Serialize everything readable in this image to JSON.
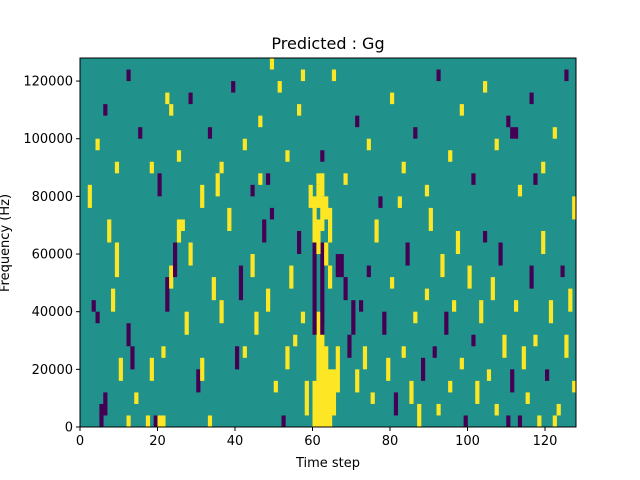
{
  "chart_data": {
    "type": "heatmap",
    "title": "Predicted : Gg",
    "xlabel": "Time step",
    "ylabel": "Frequency (Hz)",
    "xlim": [
      0,
      128
    ],
    "ylim": [
      0,
      128000
    ],
    "x_ticks": [
      0,
      20,
      40,
      60,
      80,
      100,
      120
    ],
    "x_tick_labels": [
      "0",
      "20",
      "40",
      "60",
      "80",
      "100",
      "120"
    ],
    "y_ticks": [
      0,
      20000,
      40000,
      60000,
      80000,
      100000,
      120000
    ],
    "y_tick_labels": [
      "0",
      "20000",
      "40000",
      "60000",
      "80000",
      "100000",
      "120000"
    ],
    "colormap": "viridis",
    "value_levels": [
      -1,
      0,
      1
    ],
    "colors": {
      "-1": "#440154",
      "0": "#21918c",
      "1": "#fde725"
    },
    "background_value": 0,
    "grid": false,
    "columns": 128,
    "rows": 32,
    "row_height_hz": 4000,
    "cells": [
      [
        60,
        0,
        4,
        1
      ],
      [
        61,
        0,
        10,
        1
      ],
      [
        62,
        0,
        9,
        1
      ],
      [
        63,
        0,
        7,
        1
      ],
      [
        64,
        0,
        5,
        1
      ],
      [
        60,
        8,
        10,
        -1
      ],
      [
        62,
        8,
        8,
        -1
      ],
      [
        65,
        1,
        4,
        1
      ],
      [
        58,
        1,
        3,
        1
      ],
      [
        66,
        3,
        4,
        1
      ],
      [
        64,
        12,
        2,
        1
      ],
      [
        63,
        14,
        2,
        1
      ],
      [
        61,
        15,
        3,
        1
      ],
      [
        60,
        16,
        4,
        1
      ],
      [
        62,
        17,
        3,
        1
      ],
      [
        61,
        19,
        2,
        1
      ],
      [
        62,
        20,
        2,
        1
      ],
      [
        61,
        21,
        1,
        1
      ],
      [
        63,
        18,
        2,
        1
      ],
      [
        64,
        16,
        3,
        1
      ],
      [
        66,
        13,
        2,
        -1
      ],
      [
        67,
        13,
        2,
        -1
      ],
      [
        68,
        11,
        2,
        -1
      ],
      [
        69,
        6,
        2,
        -1
      ],
      [
        70,
        8,
        3,
        -1
      ],
      [
        5,
        0,
        2,
        -1
      ],
      [
        6,
        1,
        2,
        -1
      ],
      [
        4,
        9,
        1,
        -1
      ],
      [
        3,
        10,
        1,
        -1
      ],
      [
        7,
        16,
        2,
        1
      ],
      [
        8,
        10,
        2,
        1
      ],
      [
        9,
        13,
        3,
        1
      ],
      [
        10,
        4,
        2,
        1
      ],
      [
        12,
        7,
        2,
        -1
      ],
      [
        12,
        0,
        1,
        1
      ],
      [
        13,
        5,
        2,
        -1
      ],
      [
        14,
        2,
        1,
        1
      ],
      [
        17,
        0,
        1,
        1
      ],
      [
        18,
        4,
        2,
        1
      ],
      [
        19,
        0,
        1,
        -1
      ],
      [
        20,
        0,
        1,
        1
      ],
      [
        21,
        0,
        1,
        1
      ],
      [
        21,
        6,
        1,
        1
      ],
      [
        22,
        10,
        3,
        -1
      ],
      [
        23,
        12,
        2,
        1
      ],
      [
        24,
        13,
        3,
        -1
      ],
      [
        25,
        16,
        2,
        1
      ],
      [
        26,
        17,
        1,
        1
      ],
      [
        27,
        8,
        2,
        1
      ],
      [
        28,
        14,
        2,
        1
      ],
      [
        30,
        3,
        2,
        -1
      ],
      [
        31,
        4,
        2,
        1
      ],
      [
        33,
        0,
        1,
        1
      ],
      [
        34,
        11,
        2,
        1
      ],
      [
        35,
        20,
        2,
        1
      ],
      [
        36,
        9,
        2,
        1
      ],
      [
        38,
        17,
        2,
        1
      ],
      [
        40,
        5,
        2,
        -1
      ],
      [
        41,
        11,
        3,
        -1
      ],
      [
        42,
        6,
        1,
        1
      ],
      [
        44,
        13,
        2,
        1
      ],
      [
        45,
        8,
        2,
        1
      ],
      [
        46,
        21,
        1,
        1
      ],
      [
        47,
        16,
        2,
        -1
      ],
      [
        48,
        10,
        2,
        1
      ],
      [
        49,
        18,
        1,
        -1
      ],
      [
        50,
        3,
        1,
        1
      ],
      [
        52,
        0,
        1,
        -1
      ],
      [
        53,
        5,
        2,
        1
      ],
      [
        54,
        12,
        2,
        1
      ],
      [
        55,
        7,
        1,
        1
      ],
      [
        56,
        15,
        2,
        -1
      ],
      [
        57,
        9,
        1,
        1
      ],
      [
        71,
        3,
        2,
        1
      ],
      [
        72,
        10,
        1,
        -1
      ],
      [
        73,
        5,
        2,
        1
      ],
      [
        74,
        13,
        1,
        -1
      ],
      [
        75,
        2,
        1,
        1
      ],
      [
        76,
        16,
        2,
        1
      ],
      [
        78,
        8,
        2,
        -1
      ],
      [
        79,
        4,
        2,
        1
      ],
      [
        80,
        12,
        1,
        1
      ],
      [
        81,
        1,
        2,
        -1
      ],
      [
        82,
        19,
        1,
        1
      ],
      [
        83,
        6,
        1,
        1
      ],
      [
        84,
        14,
        2,
        -1
      ],
      [
        85,
        2,
        2,
        1
      ],
      [
        86,
        9,
        1,
        1
      ],
      [
        87,
        0,
        2,
        1
      ],
      [
        88,
        4,
        2,
        -1
      ],
      [
        89,
        11,
        1,
        1
      ],
      [
        90,
        17,
        2,
        1
      ],
      [
        91,
        6,
        1,
        -1
      ],
      [
        92,
        1,
        1,
        1
      ],
      [
        93,
        13,
        2,
        1
      ],
      [
        94,
        8,
        2,
        -1
      ],
      [
        95,
        3,
        1,
        1
      ],
      [
        96,
        10,
        1,
        1
      ],
      [
        97,
        15,
        2,
        1
      ],
      [
        98,
        5,
        1,
        1
      ],
      [
        99,
        0,
        1,
        -1
      ],
      [
        100,
        12,
        2,
        1
      ],
      [
        101,
        7,
        1,
        -1
      ],
      [
        102,
        2,
        2,
        1
      ],
      [
        103,
        9,
        2,
        1
      ],
      [
        104,
        16,
        1,
        -1
      ],
      [
        105,
        4,
        1,
        1
      ],
      [
        106,
        11,
        2,
        1
      ],
      [
        107,
        1,
        1,
        1
      ],
      [
        108,
        14,
        2,
        -1
      ],
      [
        109,
        6,
        2,
        1
      ],
      [
        110,
        0,
        1,
        -1
      ],
      [
        111,
        3,
        2,
        -1
      ],
      [
        112,
        10,
        1,
        1
      ],
      [
        113,
        0,
        1,
        -1
      ],
      [
        114,
        5,
        2,
        1
      ],
      [
        115,
        2,
        1,
        1
      ],
      [
        116,
        12,
        2,
        -1
      ],
      [
        117,
        7,
        1,
        1
      ],
      [
        118,
        0,
        1,
        1
      ],
      [
        119,
        15,
        2,
        1
      ],
      [
        120,
        4,
        1,
        -1
      ],
      [
        121,
        9,
        2,
        1
      ],
      [
        122,
        0,
        1,
        1
      ],
      [
        123,
        1,
        1,
        1
      ],
      [
        124,
        13,
        1,
        -1
      ],
      [
        125,
        6,
        2,
        1
      ],
      [
        126,
        10,
        2,
        1
      ],
      [
        127,
        3,
        1,
        1
      ],
      [
        2,
        19,
        2,
        1
      ],
      [
        4,
        24,
        1,
        1
      ],
      [
        6,
        27,
        1,
        -1
      ],
      [
        9,
        22,
        1,
        1
      ],
      [
        12,
        30,
        1,
        -1
      ],
      [
        15,
        25,
        1,
        -1
      ],
      [
        18,
        22,
        1,
        1
      ],
      [
        20,
        20,
        2,
        -1
      ],
      [
        23,
        27,
        1,
        1
      ],
      [
        25,
        23,
        1,
        1
      ],
      [
        28,
        28,
        1,
        -1
      ],
      [
        31,
        19,
        2,
        1
      ],
      [
        33,
        25,
        1,
        -1
      ],
      [
        36,
        22,
        1,
        1
      ],
      [
        39,
        29,
        1,
        -1
      ],
      [
        42,
        24,
        1,
        1
      ],
      [
        44,
        20,
        1,
        -1
      ],
      [
        46,
        26,
        1,
        1
      ],
      [
        48,
        21,
        1,
        -1
      ],
      [
        51,
        29,
        1,
        1
      ],
      [
        53,
        23,
        1,
        1
      ],
      [
        56,
        27,
        1,
        1
      ],
      [
        59,
        19,
        2,
        1
      ],
      [
        62,
        23,
        1,
        -1
      ],
      [
        65,
        30,
        1,
        1
      ],
      [
        68,
        21,
        1,
        1
      ],
      [
        71,
        26,
        1,
        -1
      ],
      [
        74,
        24,
        1,
        1
      ],
      [
        77,
        19,
        1,
        -1
      ],
      [
        80,
        28,
        1,
        1
      ],
      [
        83,
        22,
        1,
        1
      ],
      [
        86,
        25,
        1,
        -1
      ],
      [
        89,
        20,
        1,
        1
      ],
      [
        92,
        30,
        1,
        -1
      ],
      [
        95,
        23,
        1,
        1
      ],
      [
        98,
        27,
        1,
        1
      ],
      [
        101,
        21,
        1,
        -1
      ],
      [
        104,
        29,
        1,
        1
      ],
      [
        107,
        24,
        1,
        1
      ],
      [
        110,
        26,
        1,
        -1
      ],
      [
        113,
        20,
        1,
        1
      ],
      [
        116,
        28,
        1,
        -1
      ],
      [
        119,
        22,
        1,
        1
      ],
      [
        122,
        25,
        1,
        1
      ],
      [
        125,
        30,
        1,
        -1
      ],
      [
        127,
        18,
        2,
        1
      ],
      [
        111,
        25,
        1,
        -1
      ],
      [
        112,
        25,
        1,
        -1
      ],
      [
        22,
        28,
        1,
        1
      ],
      [
        49,
        31,
        1,
        1
      ],
      [
        57,
        30,
        1,
        1
      ],
      [
        117,
        21,
        1,
        -1
      ]
    ]
  }
}
